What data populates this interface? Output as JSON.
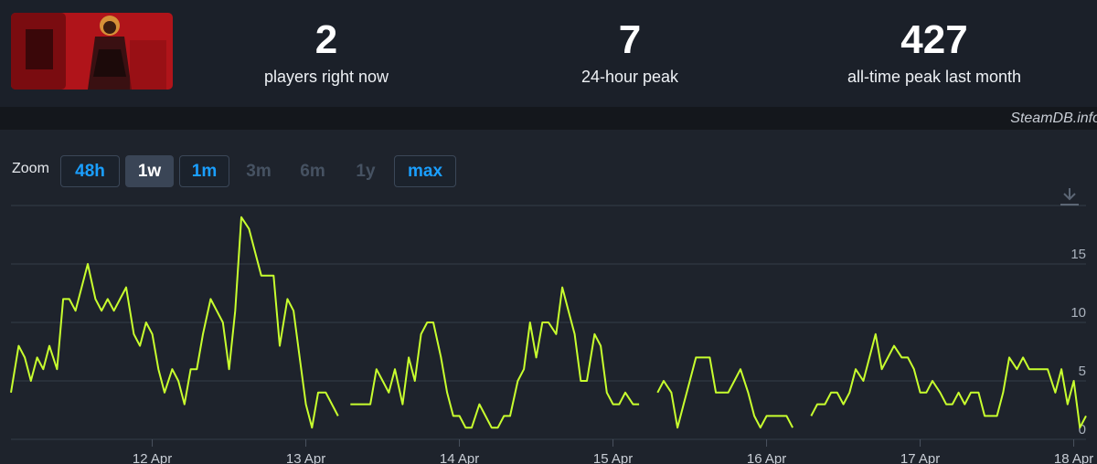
{
  "header": {
    "stats": [
      {
        "value": 2,
        "label": "players right now"
      },
      {
        "value": 7,
        "label": "24-hour peak"
      },
      {
        "value": 427,
        "label": "all-time peak last month"
      }
    ],
    "source": "SteamDB.info"
  },
  "zoom": {
    "label": "Zoom",
    "options": [
      "48h",
      "1w",
      "1m",
      "3m",
      "6m",
      "1y",
      "max"
    ],
    "selected": 1,
    "disabled": [
      3,
      4,
      5
    ]
  },
  "chart_data": {
    "type": "line",
    "x": [
      11.08,
      11.13,
      11.17,
      11.21,
      11.25,
      11.29,
      11.33,
      11.38,
      11.42,
      11.46,
      11.5,
      11.54,
      11.58,
      11.63,
      11.67,
      11.71,
      11.75,
      11.79,
      11.83,
      11.88,
      11.92,
      11.96,
      12,
      12.04,
      12.08,
      12.13,
      12.17,
      12.21,
      12.25,
      12.29,
      12.33,
      12.38,
      12.42,
      12.46,
      12.5,
      12.54,
      12.58,
      12.63,
      12.67,
      12.71,
      12.75,
      12.79,
      12.83,
      12.88,
      12.92,
      12.96,
      13,
      13.04,
      13.08,
      13.13,
      13.17,
      13.21,
      13.25,
      13.29,
      13.33,
      13.38,
      13.42,
      13.46,
      13.5,
      13.54,
      13.58,
      13.63,
      13.67,
      13.71,
      13.75,
      13.79,
      13.83,
      13.88,
      13.92,
      13.96,
      14,
      14.04,
      14.08,
      14.13,
      14.17,
      14.21,
      14.25,
      14.29,
      14.33,
      14.38,
      14.42,
      14.46,
      14.5,
      14.54,
      14.58,
      14.63,
      14.67,
      14.71,
      14.75,
      14.79,
      14.83,
      14.88,
      14.92,
      14.96,
      15,
      15.04,
      15.08,
      15.13,
      15.17,
      15.21,
      15.25,
      15.29,
      15.33,
      15.38,
      15.42,
      15.46,
      15.5,
      15.54,
      15.58,
      15.63,
      15.67,
      15.71,
      15.75,
      15.79,
      15.83,
      15.88,
      15.92,
      15.96,
      16,
      16.04,
      16.08,
      16.13,
      16.17,
      16.21,
      16.25,
      16.29,
      16.33,
      16.38,
      16.42,
      16.46,
      16.5,
      16.54,
      16.58,
      16.63,
      16.67,
      16.71,
      16.75,
      16.79,
      16.83,
      16.88,
      16.92,
      16.96,
      17,
      17.04,
      17.08,
      17.13,
      17.17,
      17.21,
      17.25,
      17.29,
      17.33,
      17.38,
      17.42,
      17.46,
      17.5,
      17.54,
      17.58,
      17.63,
      17.67,
      17.71,
      17.75,
      17.79,
      17.83,
      17.88,
      17.92,
      17.96,
      18,
      18.04,
      18.08
    ],
    "series": [
      {
        "color": "#c8ff2e",
        "values": [
          4,
          8,
          7,
          5,
          7,
          6,
          8,
          6,
          12,
          12,
          11,
          13,
          15,
          12,
          11,
          12,
          11,
          12,
          13,
          9,
          8,
          10,
          9,
          6,
          4,
          6,
          5,
          3,
          6,
          6,
          9,
          12,
          11,
          10,
          6,
          11,
          19,
          18,
          16,
          14,
          14,
          14,
          8,
          12,
          11,
          7,
          3,
          1,
          4,
          4,
          3,
          2,
          null,
          3,
          3,
          3,
          3,
          6,
          5,
          4,
          6,
          3,
          7,
          5,
          9,
          10,
          10,
          7,
          4,
          2,
          2,
          1,
          1,
          3,
          2,
          1,
          1,
          2,
          2,
          5,
          6,
          10,
          7,
          10,
          10,
          9,
          13,
          11,
          9,
          5,
          5,
          9,
          8,
          4,
          3,
          3,
          4,
          3,
          3,
          null,
          null,
          4,
          5,
          4,
          1,
          3,
          5,
          7,
          7,
          7,
          4,
          4,
          4,
          5,
          6,
          4,
          2,
          1,
          2,
          2,
          2,
          2,
          1,
          null,
          null,
          2,
          3,
          3,
          4,
          4,
          3,
          4,
          6,
          5,
          7,
          9,
          6,
          7,
          8,
          7,
          7,
          6,
          4,
          4,
          5,
          4,
          3,
          3,
          4,
          3,
          4,
          4,
          2,
          2,
          2,
          4,
          7,
          6,
          7,
          6,
          6,
          6,
          6,
          4,
          6,
          3,
          5,
          1,
          2
        ]
      }
    ],
    "xlim": [
      11.08,
      18.08
    ],
    "xticks": [
      {
        "value": 12,
        "label": "12 Apr"
      },
      {
        "value": 13,
        "label": "13 Apr"
      },
      {
        "value": 14,
        "label": "14 Apr"
      },
      {
        "value": 15,
        "label": "15 Apr"
      },
      {
        "value": 16,
        "label": "16 Apr"
      },
      {
        "value": 17,
        "label": "17 Apr"
      },
      {
        "value": 18,
        "label": "18 Apr"
      }
    ],
    "ylim": [
      0,
      20
    ],
    "yticks": [
      0,
      5,
      10,
      15
    ],
    "grid": true
  }
}
